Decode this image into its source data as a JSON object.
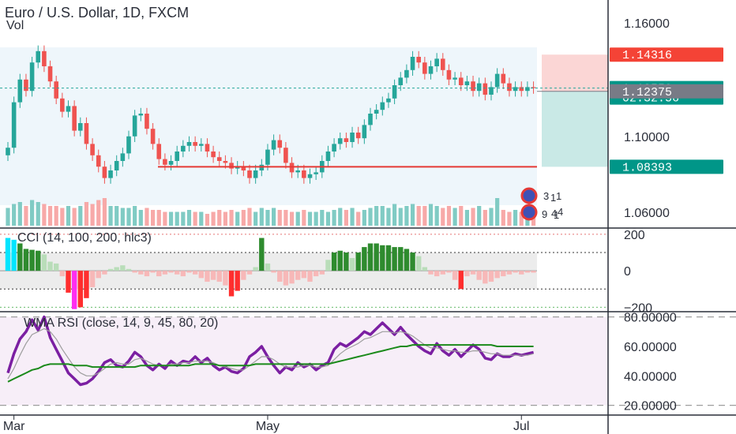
{
  "symbol_title": "Euro / U.S. Dollar, 1D, FXCM",
  "volume_label": "Vol",
  "cci_title": "CCI (14, 100, 200, hlc3)",
  "rsi_title": "WMA RSI (close, 14, 9, 45, 80, 20)",
  "colors": {
    "up": "#26a69a",
    "down": "#ef5350",
    "line_red": "#e53935",
    "tag_red": "#f44336",
    "tag_teal": "#009688",
    "tag_gray": "#787b86",
    "cci_green": "#2e8b2e",
    "cci_red": "#ff2e2e",
    "rsi_purple": "#7b1fa2",
    "rsi_green": "#1b8a1b"
  },
  "price_tags": [
    {
      "label": "1.14316",
      "value": 1.14316,
      "color": "#f44336"
    },
    {
      "label": "1.12550",
      "value": 1.1255,
      "color": "#009688"
    },
    {
      "label": "02:32:56",
      "value": 1.1205,
      "color": "#009688"
    },
    {
      "label": "1.12375",
      "value": 1.12375,
      "color": "#787b86"
    },
    {
      "label": "1.08393",
      "value": 1.08393,
      "color": "#009688"
    }
  ],
  "date_labels": [
    {
      "label": "Mar",
      "index": 1
    },
    {
      "label": "May",
      "index": 43
    },
    {
      "label": "Jul",
      "index": 85
    }
  ],
  "event_labels": [
    "3",
    "9",
    "1",
    "4",
    "1",
    "1",
    "4"
  ],
  "chart_data": [
    {
      "type": "candlestick",
      "title": "Euro / U.S. Dollar, 1D, FXCM",
      "x_labels": [
        "Mar",
        "May",
        "Jul"
      ],
      "y_ticks": [
        1.06,
        1.1,
        1.16
      ],
      "y_tick_labels": [
        "1.06000",
        "1.10000",
        "1.16000"
      ],
      "ylim": [
        1.052,
        1.172
      ],
      "horizontal_line": 1.08393,
      "position_box": {
        "entry": 1.12375,
        "target": 1.08393,
        "stop": 1.14316
      },
      "last_price": 1.1255,
      "closes": [
        1.094,
        1.118,
        1.13,
        1.124,
        1.139,
        1.145,
        1.137,
        1.129,
        1.12,
        1.113,
        1.116,
        1.103,
        1.107,
        1.096,
        1.09,
        1.084,
        1.078,
        1.082,
        1.087,
        1.091,
        1.1,
        1.111,
        1.112,
        1.104,
        1.096,
        1.088,
        1.085,
        1.087,
        1.092,
        1.095,
        1.097,
        1.095,
        1.096,
        1.092,
        1.089,
        1.087,
        1.086,
        1.083,
        1.084,
        1.082,
        1.078,
        1.082,
        1.085,
        1.093,
        1.098,
        1.094,
        1.086,
        1.081,
        1.082,
        1.078,
        1.08,
        1.081,
        1.087,
        1.092,
        1.096,
        1.099,
        1.097,
        1.102,
        1.099,
        1.106,
        1.112,
        1.114,
        1.118,
        1.12,
        1.127,
        1.131,
        1.135,
        1.142,
        1.139,
        1.133,
        1.137,
        1.141,
        1.135,
        1.13,
        1.131,
        1.127,
        1.129,
        1.124,
        1.128,
        1.122,
        1.126,
        1.133,
        1.128,
        1.124,
        1.126,
        1.124,
        1.126,
        1.1255
      ],
      "volume_ylim": [
        0,
        1
      ],
      "volume": [
        0.45,
        0.55,
        0.6,
        0.5,
        0.65,
        0.6,
        0.55,
        0.5,
        0.5,
        0.45,
        0.5,
        0.45,
        0.5,
        0.6,
        0.55,
        0.65,
        0.7,
        0.5,
        0.5,
        0.45,
        0.45,
        0.5,
        0.4,
        0.45,
        0.4,
        0.4,
        0.35,
        0.35,
        0.35,
        0.35,
        0.4,
        0.35,
        0.35,
        0.3,
        0.35,
        0.4,
        0.35,
        0.4,
        0.35,
        0.4,
        0.45,
        0.35,
        0.45,
        0.4,
        0.45,
        0.4,
        0.4,
        0.35,
        0.35,
        0.4,
        0.35,
        0.35,
        0.4,
        0.35,
        0.4,
        0.45,
        0.4,
        0.45,
        0.35,
        0.4,
        0.45,
        0.5,
        0.5,
        0.45,
        0.55,
        0.45,
        0.5,
        0.55,
        0.5,
        0.5,
        0.55,
        0.5,
        0.45,
        0.5,
        0.45,
        0.5,
        0.4,
        0.45,
        0.5,
        0.4,
        0.45,
        0.7,
        0.4,
        0.35,
        0.4,
        0.35,
        0.3,
        0.35
      ],
      "volume_profile": [
        {
          "price": 1.146,
          "up": 0.06,
          "down": 0.05
        },
        {
          "price": 1.142,
          "up": 0.09,
          "down": 0.08
        },
        {
          "price": 1.138,
          "up": 0.11,
          "down": 0.12
        },
        {
          "price": 1.134,
          "up": 0.13,
          "down": 0.14
        },
        {
          "price": 1.13,
          "up": 0.16,
          "down": 0.17
        },
        {
          "price": 1.126,
          "up": 0.14,
          "down": 0.52
        },
        {
          "price": 1.122,
          "up": 0.12,
          "down": 0.24
        },
        {
          "price": 1.118,
          "up": 0.15,
          "down": 0.17
        },
        {
          "price": 1.114,
          "up": 0.14,
          "down": 0.16
        },
        {
          "price": 1.11,
          "up": 0.18,
          "down": 0.13
        },
        {
          "price": 1.106,
          "up": 0.24,
          "down": 0.16
        },
        {
          "price": 1.102,
          "up": 0.3,
          "down": 0.34
        },
        {
          "price": 1.098,
          "up": 0.25,
          "down": 0.38
        },
        {
          "price": 1.094,
          "up": 0.3,
          "down": 0.4
        },
        {
          "price": 1.09,
          "up": 0.32,
          "down": 0.34
        },
        {
          "price": 1.086,
          "up": 0.3,
          "down": 0.28
        },
        {
          "price": 1.082,
          "up": 0.16,
          "down": 0.14
        },
        {
          "price": 1.078,
          "up": 0.1,
          "down": 0.1
        },
        {
          "price": 1.074,
          "up": 0.07,
          "down": 0.05
        }
      ]
    },
    {
      "type": "bar",
      "title": "CCI (14, 100, 200, hlc3)",
      "y_ticks": [
        200,
        0,
        -200
      ],
      "y_tick_labels": [
        "200",
        "0",
        "−200"
      ],
      "ylim": [
        -220,
        230
      ],
      "levels": [
        200,
        100,
        -100,
        -200
      ],
      "values": [
        180,
        170,
        150,
        120,
        115,
        110,
        90,
        50,
        40,
        -30,
        -120,
        -210,
        -200,
        -150,
        -90,
        -40,
        -20,
        10,
        20,
        30,
        10,
        -10,
        -20,
        -30,
        -10,
        -30,
        -20,
        -10,
        -20,
        -30,
        -10,
        -20,
        -40,
        -60,
        -50,
        -60,
        -80,
        -140,
        -110,
        -50,
        -20,
        20,
        180,
        40,
        -10,
        -60,
        -80,
        -70,
        -50,
        -40,
        -60,
        -30,
        -20,
        60,
        100,
        110,
        100,
        70,
        100,
        130,
        150,
        150,
        140,
        140,
        130,
        130,
        120,
        100,
        80,
        20,
        -20,
        -30,
        -20,
        -10,
        -50,
        -100,
        -30,
        -20,
        -50,
        -70,
        -60,
        -40,
        -30,
        -20,
        -10,
        -20,
        -10,
        -10
      ],
      "highlight": [
        {
          "index": 0,
          "color": "#00e5ff"
        },
        {
          "index": 1,
          "color": "#00e5ff"
        },
        {
          "index": 11,
          "color": "#ff2ef0"
        }
      ]
    },
    {
      "type": "line",
      "title": "WMA RSI (close, 14, 9, 45, 80, 20)",
      "y_ticks": [
        80,
        60,
        40,
        20
      ],
      "y_tick_labels": [
        "80.00000",
        "60.00000",
        "40.00000",
        "20.00000"
      ],
      "ylim": [
        15,
        83
      ],
      "levels": [
        80,
        20
      ],
      "series": [
        {
          "values": [
            42,
            55,
            65,
            70,
            78,
            71,
            80,
            66,
            58,
            50,
            42,
            38,
            34,
            35,
            38,
            43,
            49,
            51,
            47,
            46,
            50,
            56,
            53,
            47,
            44,
            48,
            45,
            50,
            47,
            50,
            49,
            53,
            49,
            52,
            47,
            44,
            46,
            43,
            42,
            45,
            53,
            56,
            60,
            53,
            47,
            42,
            46,
            44,
            49,
            46,
            48,
            44,
            47,
            49,
            58,
            62,
            60,
            63,
            66,
            70,
            68,
            72,
            76,
            72,
            68,
            73,
            68,
            64,
            60,
            57,
            55,
            62,
            57,
            54,
            58,
            53,
            57,
            61,
            58,
            52,
            51,
            55,
            53,
            53,
            55,
            54,
            55,
            56
          ],
          "color": "#7b1fa2"
        },
        {
          "values": [
            38,
            45,
            54,
            62,
            68,
            70,
            72,
            70,
            65,
            58,
            52,
            46,
            42,
            40,
            40,
            42,
            45,
            48,
            49,
            48,
            48,
            51,
            52,
            50,
            48,
            47,
            47,
            48,
            48,
            49,
            49,
            50,
            50,
            50,
            49,
            47,
            46,
            45,
            44,
            44,
            47,
            50,
            53,
            53,
            51,
            48,
            46,
            46,
            46,
            47,
            47,
            46,
            46,
            47,
            51,
            55,
            58,
            60,
            62,
            65,
            66,
            68,
            70,
            70,
            69,
            70,
            69,
            67,
            64,
            61,
            59,
            59,
            58,
            57,
            57,
            56,
            56,
            57,
            57,
            56,
            55,
            55,
            54,
            54,
            54,
            54,
            54,
            55
          ],
          "color": "#9e9e9e"
        },
        {
          "values": [
            36,
            38,
            40,
            42,
            44,
            45,
            47,
            48,
            48,
            48,
            48,
            47,
            47,
            47,
            46,
            46,
            46,
            46,
            46,
            46,
            46,
            46,
            47,
            47,
            47,
            47,
            47,
            47,
            47,
            47,
            47,
            48,
            48,
            48,
            48,
            47,
            47,
            47,
            47,
            47,
            47,
            48,
            48,
            48,
            48,
            48,
            48,
            48,
            48,
            48,
            48,
            48,
            48,
            48,
            49,
            50,
            51,
            52,
            53,
            54,
            55,
            56,
            57,
            58,
            59,
            60,
            60,
            61,
            61,
            61,
            61,
            61,
            61,
            61,
            61,
            61,
            61,
            61,
            61,
            61,
            61,
            60,
            60,
            60,
            60,
            60,
            60,
            60
          ],
          "color": "#1b8a1b"
        }
      ]
    }
  ]
}
